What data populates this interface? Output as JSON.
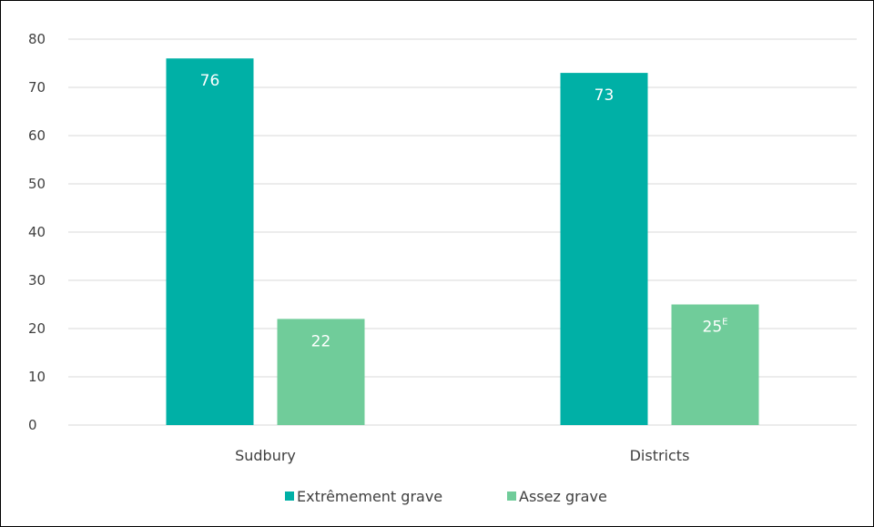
{
  "chart_data": {
    "type": "bar",
    "categories": [
      "Sudbury",
      "Districts"
    ],
    "series": [
      {
        "name": "Extrêmement grave",
        "color": "#00b0a6",
        "values": [
          76,
          73
        ],
        "labels": [
          "76",
          "73"
        ],
        "label_superscripts": [
          "",
          ""
        ]
      },
      {
        "name": "Assez grave",
        "color": "#70cc9a",
        "values": [
          22,
          25
        ],
        "labels": [
          "22",
          "25"
        ],
        "label_superscripts": [
          "",
          "E"
        ]
      }
    ],
    "ylim": [
      0,
      80
    ],
    "yticks": [
      "0",
      "10",
      "20",
      "30",
      "40",
      "50",
      "60",
      "70",
      "80"
    ],
    "grid": true,
    "legend_position": "bottom",
    "gridline_color": "#d9d9d9",
    "text_color": "#404040"
  }
}
